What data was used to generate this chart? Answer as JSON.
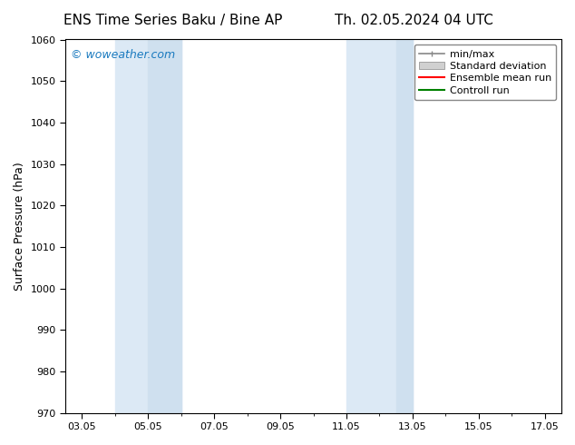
{
  "title_left": "ENS Time Series Baku / Bine AP",
  "title_right": "Th. 02.05.2024 04 UTC",
  "ylabel": "Surface Pressure (hPa)",
  "ylim": [
    970,
    1060
  ],
  "yticks": [
    970,
    980,
    990,
    1000,
    1010,
    1020,
    1030,
    1040,
    1050,
    1060
  ],
  "xtick_labels": [
    "03.05",
    "05.05",
    "07.05",
    "09.05",
    "11.05",
    "13.05",
    "15.05",
    "17.05"
  ],
  "xtick_positions": [
    0,
    2,
    4,
    6,
    8,
    10,
    12,
    14
  ],
  "xlim": [
    -0.5,
    14.5
  ],
  "watermark": "© woweather.com",
  "watermark_color": "#1a7abf",
  "bg_color": "#ffffff",
  "shaded_bands": [
    {
      "x_start": 1.5,
      "x_end": 3.5,
      "color": "#ddeeff"
    },
    {
      "x_start": 3.5,
      "x_end": 4.0,
      "color": "#c8ddf0"
    },
    {
      "x_start": 8.5,
      "x_end": 10.5,
      "color": "#ddeeff"
    }
  ],
  "legend_items": [
    {
      "label": "min/max",
      "color": "#aaaaaa",
      "style": "line_caps"
    },
    {
      "label": "Standard deviation",
      "color": "#cccccc",
      "style": "patch"
    },
    {
      "label": "Ensemble mean run",
      "color": "#ff0000",
      "style": "line"
    },
    {
      "label": "Controll run",
      "color": "#008000",
      "style": "line"
    }
  ],
  "font_family": "DejaVu Sans",
  "title_fontsize": 11,
  "axis_fontsize": 9,
  "tick_fontsize": 8,
  "legend_fontsize": 8
}
